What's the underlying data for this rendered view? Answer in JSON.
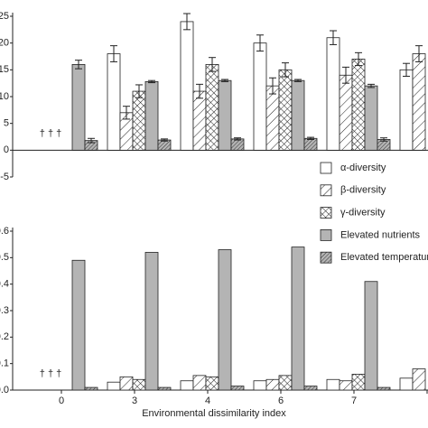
{
  "chart_data": {
    "type": "bar",
    "xlabel": "Environmental dissimilarity index",
    "categories": [
      "0",
      "3",
      "4",
      "6",
      "7",
      null
    ],
    "annotation": "† † †",
    "series": [
      {
        "name": "α-diversity",
        "color": "#ffffff",
        "hatch": "none"
      },
      {
        "name": "β-diversity",
        "color": "#ffffff",
        "hatch": "diagonal"
      },
      {
        "name": "γ-diversity",
        "color": "#ffffff",
        "hatch": "cross"
      },
      {
        "name": "Elevated nutrients",
        "color": "#b4b4b4",
        "hatch": "none"
      },
      {
        "name": "Elevated temperature",
        "color": "#b4b4b4",
        "hatch": "dense"
      }
    ],
    "panels": [
      {
        "ylim": [
          -5,
          25
        ],
        "yticks": [
          -5,
          0,
          5,
          10,
          15,
          20,
          25
        ],
        "values": [
          [
            null,
            18,
            24,
            20,
            21,
            15
          ],
          [
            null,
            7,
            11,
            12,
            14,
            18
          ],
          [
            null,
            11,
            16,
            15,
            17,
            null
          ],
          [
            16,
            12.8,
            13,
            13,
            12,
            null
          ],
          [
            1.8,
            1.9,
            2.1,
            2.2,
            2.0,
            null
          ]
        ],
        "errors": [
          [
            null,
            1.5,
            1.5,
            1.5,
            1.3,
            1.2
          ],
          [
            null,
            1.2,
            1.3,
            1.5,
            1.5,
            1.5
          ],
          [
            null,
            1.2,
            1.3,
            1.3,
            1.2,
            null
          ],
          [
            0.8,
            0.2,
            0.2,
            0.2,
            0.3,
            null
          ],
          [
            0.4,
            0.2,
            0.2,
            0.2,
            0.3,
            null
          ]
        ]
      },
      {
        "ylim": [
          0,
          0.6
        ],
        "yticks": [
          {
            "value": 0,
            "label": "0.0"
          },
          0.1,
          0.2,
          0.3,
          0.4,
          0.5,
          0.6
        ],
        "values": [
          [
            null,
            0.03,
            0.035,
            0.035,
            0.04,
            0.045
          ],
          [
            null,
            0.05,
            0.055,
            0.04,
            0.035,
            0.08
          ],
          [
            null,
            0.04,
            0.05,
            0.055,
            0.06,
            null
          ],
          [
            0.49,
            0.52,
            0.53,
            0.54,
            0.41,
            null
          ],
          [
            0.01,
            0.01,
            0.015,
            0.015,
            0.01,
            null
          ]
        ]
      }
    ]
  }
}
